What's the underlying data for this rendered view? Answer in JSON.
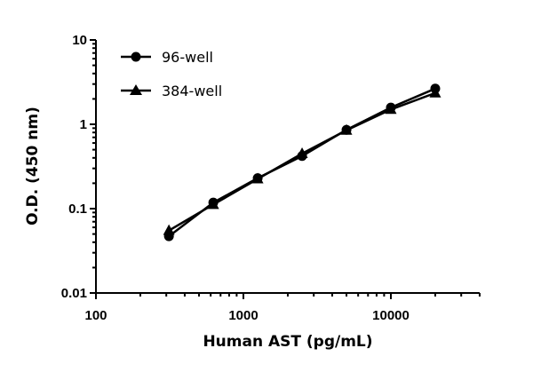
{
  "chart_data": {
    "type": "line",
    "title": "",
    "xlabel": "Human AST (pg/mL)",
    "ylabel": "O.D. (450 nm)",
    "xscale": "log",
    "yscale": "log",
    "xlim": [
      100,
      40000
    ],
    "ylim": [
      0.01,
      10
    ],
    "x_ticks": [
      "100",
      "1000",
      "10000"
    ],
    "y_ticks": [
      "0.01",
      "0.1",
      "1",
      "10"
    ],
    "grid": false,
    "legend_position": "top-left",
    "x": [
      312.5,
      625,
      1250,
      2500,
      5000,
      10000,
      20000
    ],
    "series": [
      {
        "name": "96-well",
        "marker": "circle",
        "color": "#000000",
        "values": [
          0.047,
          0.118,
          0.23,
          0.42,
          0.86,
          1.58,
          2.65
        ]
      },
      {
        "name": "384-well",
        "marker": "triangle",
        "color": "#000000",
        "values": [
          0.055,
          0.112,
          0.225,
          0.45,
          0.85,
          1.5,
          2.35
        ]
      }
    ]
  }
}
